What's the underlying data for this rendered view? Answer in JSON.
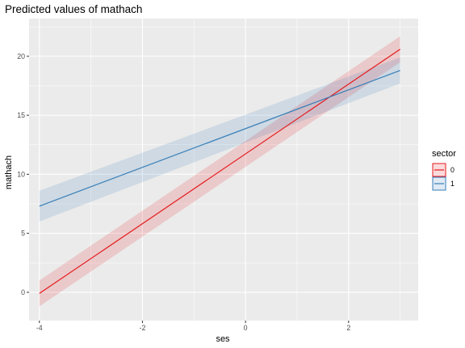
{
  "chart_data": {
    "type": "line",
    "title": "Predicted values of mathach",
    "xlabel": "ses",
    "ylabel": "mathach",
    "xlim": [
      -4.2,
      3.35
    ],
    "ylim": [
      -2.4,
      23.2
    ],
    "x_ticks": [
      -4,
      -2,
      0,
      2
    ],
    "y_ticks": [
      0,
      5,
      10,
      15,
      20
    ],
    "x_tick_labels": [
      "-4",
      "-2",
      "0",
      "2"
    ],
    "y_tick_labels": [
      "0",
      "5",
      "10",
      "15",
      "20"
    ],
    "grid": true,
    "legend": {
      "title": "sector",
      "position": "right"
    },
    "series": [
      {
        "name": "0",
        "color": "#e41a1c",
        "x": [
          -4,
          3
        ],
        "y": [
          -0.1,
          20.6
        ],
        "ci_low": [
          -1.2,
          19.5
        ],
        "ci_high": [
          1.0,
          21.7
        ]
      },
      {
        "name": "1",
        "color": "#377eb8",
        "x": [
          -4,
          3
        ],
        "y": [
          7.3,
          18.8
        ],
        "ci_low": [
          6.0,
          17.7
        ],
        "ci_high": [
          8.6,
          19.9
        ]
      }
    ]
  }
}
